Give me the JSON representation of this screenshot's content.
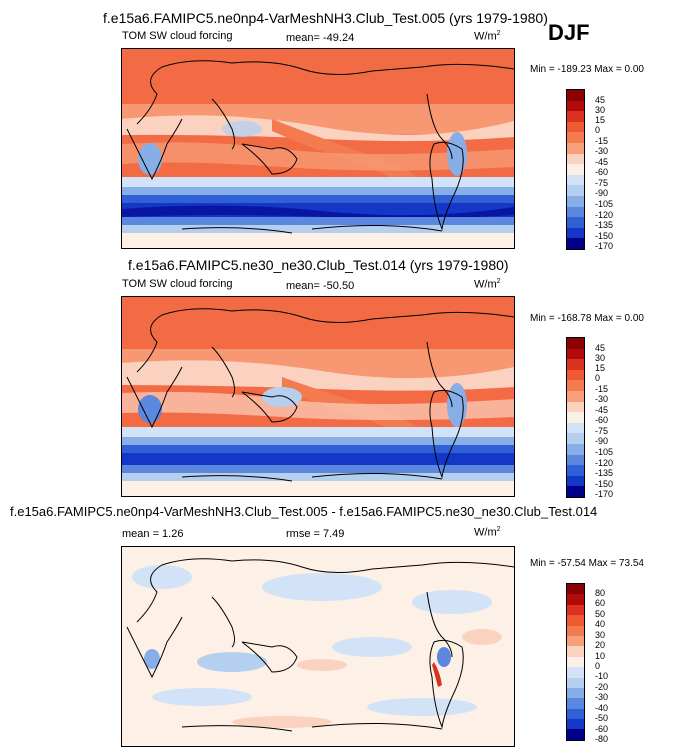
{
  "season": "DJF",
  "unit_base": "W/m",
  "unit_exp": "2",
  "colors": {
    "pos45": "#8b0000",
    "pos30": "#b20a0a",
    "pos15": "#d93222",
    "pos0": "#ef5a32",
    "neg15": "#f47a4f",
    "neg30": "#f7a07a",
    "neg45": "#fbd2bf",
    "neg60": "#fdf0e6",
    "neg75": "#d3e3f7",
    "neg90": "#b5cfef",
    "neg105": "#87aee6",
    "neg120": "#5b87de",
    "neg135": "#3060d6",
    "neg150": "#1437c8",
    "neg170": "#00008b"
  },
  "chart_data": [
    {
      "type": "heatmap",
      "title": "f.e15a6.FAMIPC5.ne0np4-VarMeshNH3.Club_Test.005 (yrs 1979-1980)",
      "left_label": "TOM SW cloud forcing",
      "mean_label": "mean= -49.24",
      "min_max_label": "Min = -189.23 Max =   0.00",
      "min": -189.23,
      "max": 0.0,
      "mean": -49.24,
      "colorbar_levels": [
        "45",
        "30",
        "15",
        "0",
        "-15",
        "-30",
        "-45",
        "-60",
        "-75",
        "-90",
        "-105",
        "-120",
        "-135",
        "-150",
        "-170"
      ]
    },
    {
      "type": "heatmap",
      "title": "f.e15a6.FAMIPC5.ne30_ne30.Club_Test.014 (yrs 1979-1980)",
      "left_label": "TOM SW cloud forcing",
      "mean_label": "mean= -50.50",
      "min_max_label": "Min = -168.78 Max =   0.00",
      "min": -168.78,
      "max": 0.0,
      "mean": -50.5,
      "colorbar_levels": [
        "45",
        "30",
        "15",
        "0",
        "-15",
        "-30",
        "-45",
        "-60",
        "-75",
        "-90",
        "-105",
        "-120",
        "-135",
        "-150",
        "-170"
      ]
    },
    {
      "type": "heatmap",
      "title": "f.e15a6.FAMIPC5.ne0np4-VarMeshNH3.Club_Test.005 - f.e15a6.FAMIPC5.ne30_ne30.Club_Test.014",
      "mean_label": "mean =   1.26",
      "rmse_label": "rmse =   7.49",
      "min_max_label": "Min = -57.54 Max =  73.54",
      "min": -57.54,
      "max": 73.54,
      "mean": 1.26,
      "rmse": 7.49,
      "colorbar_levels": [
        "80",
        "60",
        "50",
        "40",
        "30",
        "20",
        "10",
        "0",
        "-10",
        "-20",
        "-30",
        "-40",
        "-50",
        "-60",
        "-80"
      ]
    }
  ]
}
